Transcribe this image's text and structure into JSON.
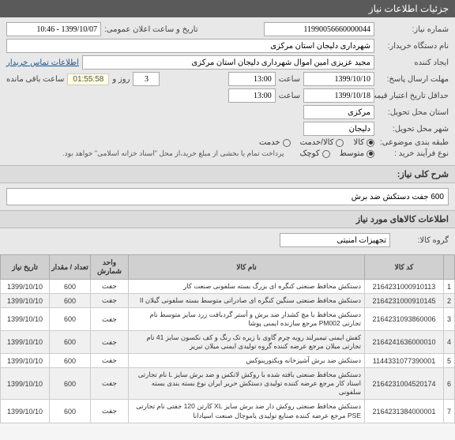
{
  "header": {
    "title": "جزئیات اطلاعات نیاز"
  },
  "form": {
    "need_no_label": "شماره نیاز:",
    "need_no": "11990056660000044",
    "announce_label": "تاریخ و ساعت اعلان عمومی:",
    "announce": "1399/10/07 - 10:46",
    "buyer_label": "نام دستگاه خریدار:",
    "buyer": "شهرداری دلیجان استان مرکزی",
    "creator_label": "ایجاد کننده",
    "creator": "مجید عزیزی امین اموال شهرداری دلیجان استان مرکزی",
    "contact_link": "اطلاعات تماس خریدار",
    "deadline_reply_label": "مهلت ارسال پاسخ:",
    "deadline_reply_date": "1399/10/10",
    "time_label": "ساعت",
    "deadline_reply_time": "13:00",
    "days_count": "3",
    "days_label": "روز و",
    "countdown": "01:55:58",
    "remain_label": "ساعت باقی مانده",
    "min_valid_label": "حداقل تاریخ اعتبار قیمت: تا تاریخ:",
    "min_valid_date": "1399/10/18",
    "min_valid_time": "13:00",
    "province_label": "استان محل تحویل:",
    "province": "مرکزی",
    "city_label": "شهر محل تحویل:",
    "city": "دلیجان",
    "pack_label": "طبقه بندی موضوعی:",
    "pack_opts": [
      "کالا",
      "کالا/خدمت",
      "خدمت"
    ],
    "proc_label": "نوع فرآیند خرید :",
    "proc_opts": [
      "متوسط",
      "کوچک"
    ],
    "note": "پرداخت تمام یا بخشی از مبلغ خرید،از محل \"اسناد خزانه اسلامی\" خواهد بود."
  },
  "desc": {
    "section_label": "شرح کلی نیاز:",
    "text": "600 جفت دستکش ضد برش"
  },
  "items_section": "اطلاعات کالاهای مورد نیاز",
  "group": {
    "label": "گروه کالا:",
    "value": "تجهیزات امنیتی"
  },
  "table": {
    "headers": [
      "",
      "کد کالا",
      "نام کالا",
      "واحد شمارش",
      "تعداد / مقدار",
      "تاریخ نیاز"
    ],
    "rows": [
      {
        "i": "1",
        "code": "2164231000910113",
        "name": "دستکش محافظ صنعتی کنگره ای بزرگ بسته سلفونی صنعت کار",
        "unit": "جفت",
        "qty": "600",
        "date": "1399/10/10"
      },
      {
        "i": "2",
        "code": "2164231000910145",
        "name": "دستکش محافظ صنعتی سنگین کنگره ای صادراتی متوسط بسته سلفونی گیلان II",
        "unit": "جفت",
        "qty": "600",
        "date": "1399/10/10"
      },
      {
        "i": "3",
        "code": "2164231093860006",
        "name": "دستکش محافظ با مچ کشدار ضد برش و آستر گردبافت زرد سایز متوسط نام تجارتی PM002 مرجع سازنده ایمنی پوشا",
        "unit": "جفت",
        "qty": "600",
        "date": "1399/10/10"
      },
      {
        "i": "4",
        "code": "2164241636000010",
        "name": "کفش ایمنی تیمبرلند رویه چرم گاوی با زیره تک رنگ و کف نکسون سایز 41 نام تجارتی میلان مرجع عرضه کننده گروه تولیدی ایمنی میلان تبریز",
        "unit": "جفت",
        "qty": "600",
        "date": "1399/10/10"
      },
      {
        "i": "5",
        "code": "1144331077390001",
        "name": "دستکش ضد برش آشپزخانه ویکتورینوکس",
        "unit": "جفت",
        "qty": "600",
        "date": "1399/10/10"
      },
      {
        "i": "6",
        "code": "2164231004520174",
        "name": "دستکش محافظ صنعتی بافته شده با روکش لاتکس و ضد برش سایز L نام تجارتی استاد کار مرجع عرضه کننده تولیدی دستکش حریر ایران نوع بسته بندی بسته سلفونی",
        "unit": "جفت",
        "qty": "600",
        "date": "1399/10/10"
      },
      {
        "i": "7",
        "code": "2164231384000001",
        "name": "دستکش محافظ صنعتی روکش دار ضد برش سایز XL کارتن 120 جفتی نام تجارتی PSE مرجع عرضه کننده صنایع تولیدی یاموچال صنعت اسپادانا",
        "unit": "جفت",
        "qty": "600",
        "date": "1399/10/10"
      }
    ]
  }
}
